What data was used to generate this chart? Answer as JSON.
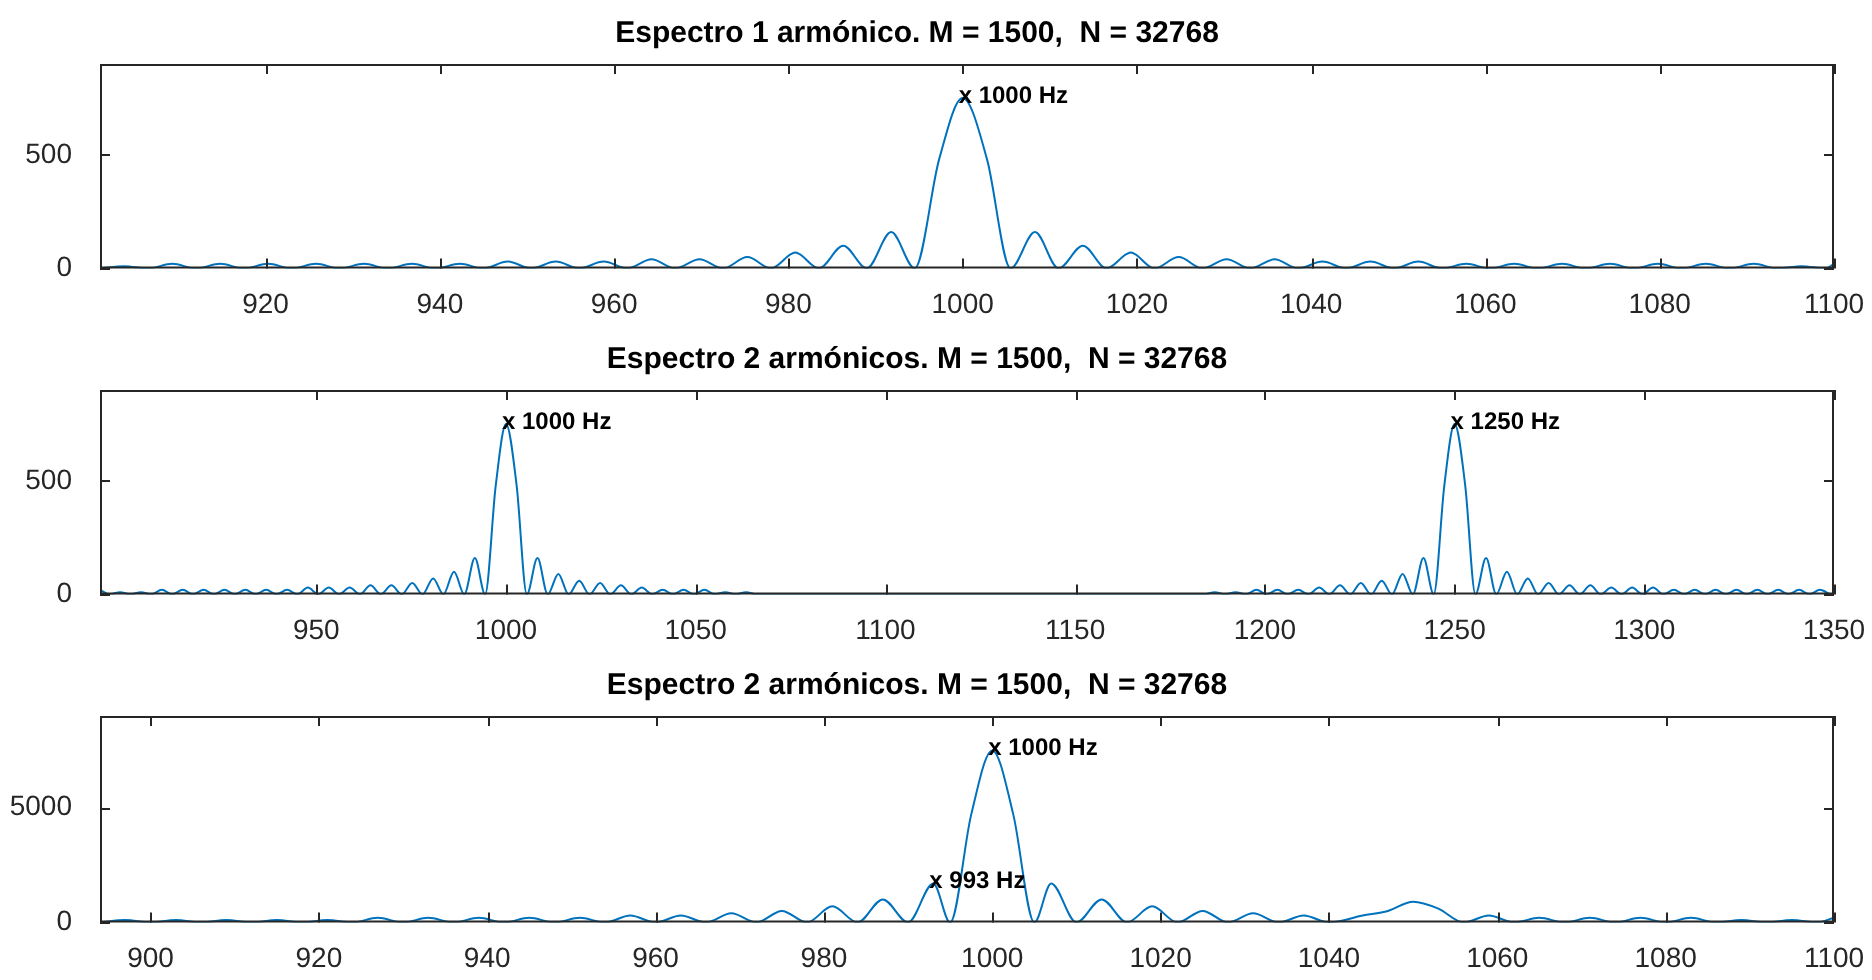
{
  "chart_data": [
    {
      "type": "line",
      "title": "Espectro 1 armónico. M = 1500,  N = 32768",
      "color": "#0072bd",
      "xlim": [
        901,
        1100
      ],
      "ylim": [
        0,
        900
      ],
      "xticks": [
        920,
        940,
        960,
        980,
        1000,
        1020,
        1040,
        1060,
        1080,
        1100
      ],
      "yticks": [
        0,
        500
      ],
      "x": [
        901,
        903.8,
        906.5,
        909.3,
        912,
        914.8,
        917.5,
        920.3,
        923,
        925.8,
        928.5,
        931.3,
        934,
        936.8,
        939.5,
        942.3,
        945,
        947.8,
        950.5,
        953.3,
        956,
        958.8,
        961.5,
        964.3,
        967,
        969.8,
        972.5,
        975.3,
        978,
        980.8,
        983.5,
        986.3,
        989,
        991.8,
        994.5,
        997.3,
        1000,
        1002.8,
        1005.5,
        1008.3,
        1011,
        1013.8,
        1016.5,
        1019.3,
        1022,
        1024.8,
        1027.5,
        1030.3,
        1033,
        1035.8,
        1038.5,
        1041.3,
        1044,
        1046.8,
        1049.5,
        1052.3,
        1055,
        1057.8,
        1060.5,
        1063.3,
        1066,
        1068.8,
        1071.5,
        1074.3,
        1077,
        1079.8,
        1082.5,
        1085.3,
        1088,
        1090.8,
        1093.5,
        1096.3,
        1099,
        1100
      ],
      "values": [
        0,
        10,
        0,
        20,
        0,
        20,
        0,
        20,
        0,
        20,
        0,
        20,
        0,
        20,
        0,
        20,
        0,
        30,
        0,
        30,
        0,
        30,
        0,
        40,
        0,
        40,
        0,
        50,
        0,
        70,
        0,
        100,
        0,
        160,
        0,
        480,
        750,
        480,
        0,
        160,
        0,
        100,
        0,
        70,
        0,
        50,
        0,
        40,
        0,
        40,
        0,
        30,
        0,
        30,
        0,
        30,
        0,
        20,
        0,
        20,
        0,
        20,
        0,
        20,
        0,
        20,
        0,
        20,
        0,
        20,
        0,
        10,
        0,
        20
      ],
      "annotations": [
        {
          "text": "x 1000 Hz",
          "x": 1000,
          "y": 750
        }
      ]
    },
    {
      "type": "line",
      "title": "Espectro 2 armónicos. M = 1500,  N = 32768",
      "color": "#0072bd",
      "xlim": [
        893,
        1350
      ],
      "ylim": [
        0,
        900
      ],
      "xticks": [
        950,
        1000,
        1050,
        1100,
        1150,
        1200,
        1250,
        1300,
        1350
      ],
      "yticks": [
        0,
        500
      ],
      "x": [
        893,
        895.5,
        898.3,
        901,
        903.8,
        906.5,
        909.3,
        912,
        914.8,
        917.5,
        920.3,
        923,
        925.8,
        928.5,
        931.3,
        934,
        936.8,
        939.5,
        942.3,
        945,
        947.8,
        950.5,
        953.3,
        956,
        958.8,
        961.5,
        964.3,
        967,
        969.8,
        972.5,
        975.3,
        978,
        980.8,
        983.5,
        986.3,
        989,
        991.8,
        994.5,
        997.3,
        1000,
        1002.8,
        1005.5,
        1008.3,
        1011,
        1013.8,
        1016.5,
        1019.3,
        1022,
        1024.8,
        1027.5,
        1030.3,
        1033,
        1035.8,
        1038.5,
        1041.3,
        1044,
        1046.8,
        1049.5,
        1052.3,
        1055,
        1057.8,
        1060.5,
        1063.3,
        1066,
        1184,
        1186.8,
        1189.5,
        1192.3,
        1195,
        1197.8,
        1200.5,
        1203.3,
        1206,
        1208.8,
        1211.5,
        1214.3,
        1217,
        1219.8,
        1222.5,
        1225.3,
        1228,
        1230.8,
        1233.5,
        1236.3,
        1239,
        1241.8,
        1244.5,
        1247.3,
        1250,
        1252.8,
        1255.5,
        1258.3,
        1261,
        1263.8,
        1266.5,
        1269.3,
        1272,
        1274.8,
        1277.5,
        1280.3,
        1283,
        1285.8,
        1288.5,
        1291.3,
        1294,
        1296.8,
        1299.5,
        1302.3,
        1305,
        1307.8,
        1310.5,
        1313.3,
        1316,
        1318.8,
        1321.5,
        1324.3,
        1327,
        1329.8,
        1332.5,
        1335.3,
        1338,
        1340.8,
        1343.5,
        1346.3,
        1349
      ],
      "values": [
        20,
        0,
        10,
        0,
        10,
        0,
        20,
        0,
        20,
        0,
        20,
        0,
        20,
        0,
        20,
        0,
        20,
        0,
        20,
        0,
        30,
        0,
        30,
        0,
        30,
        0,
        40,
        0,
        40,
        0,
        50,
        0,
        70,
        0,
        100,
        0,
        160,
        0,
        480,
        750,
        480,
        0,
        160,
        0,
        90,
        0,
        60,
        0,
        50,
        0,
        40,
        0,
        30,
        0,
        20,
        0,
        20,
        0,
        20,
        0,
        10,
        0,
        10,
        0,
        0,
        10,
        0,
        10,
        0,
        20,
        0,
        20,
        0,
        20,
        0,
        30,
        0,
        40,
        0,
        50,
        0,
        60,
        0,
        90,
        0,
        160,
        0,
        480,
        750,
        480,
        0,
        160,
        0,
        100,
        0,
        70,
        0,
        50,
        0,
        40,
        0,
        40,
        0,
        30,
        0,
        30,
        0,
        30,
        0,
        20,
        0,
        20,
        0,
        20,
        0,
        20,
        0,
        20,
        0,
        20,
        0,
        20,
        0,
        20,
        0
      ],
      "annotations": [
        {
          "text": "x 1000 Hz",
          "x": 1000,
          "y": 750
        },
        {
          "text": "x 1250 Hz",
          "x": 1250,
          "y": 750
        }
      ]
    },
    {
      "type": "line",
      "title": "Espectro 2 armónicos. M = 1500,  N = 32768",
      "color": "#0072bd",
      "xlim": [
        894,
        1100
      ],
      "ylim": [
        0,
        9000
      ],
      "xticks": [
        900,
        920,
        940,
        960,
        980,
        1000,
        1020,
        1040,
        1060,
        1080,
        1100
      ],
      "yticks": [
        0,
        5000
      ],
      "x": [
        894,
        897,
        900,
        903,
        906,
        909,
        912,
        915,
        918,
        921,
        924,
        927,
        930,
        933,
        936,
        939,
        942,
        945,
        948,
        951,
        954,
        957,
        960,
        963,
        966,
        969,
        972,
        975,
        978,
        981,
        984,
        987,
        990,
        993,
        995,
        997.5,
        1000,
        1002.5,
        1005,
        1007,
        1010,
        1013,
        1016,
        1019,
        1022,
        1025,
        1028,
        1031,
        1034,
        1037,
        1040,
        1044,
        1047,
        1050,
        1053,
        1056,
        1059,
        1062,
        1065,
        1068,
        1071,
        1074,
        1077,
        1080,
        1083,
        1086,
        1089,
        1092,
        1095,
        1098,
        1100
      ],
      "values": [
        0,
        100,
        0,
        100,
        0,
        100,
        0,
        100,
        0,
        100,
        0,
        200,
        0,
        200,
        0,
        200,
        0,
        200,
        0,
        200,
        0,
        300,
        0,
        300,
        0,
        400,
        0,
        500,
        0,
        700,
        0,
        1000,
        0,
        1700,
        0,
        4700,
        7500,
        4700,
        0,
        1700,
        0,
        1000,
        0,
        700,
        0,
        500,
        0,
        400,
        0,
        300,
        0,
        300,
        500,
        900,
        600,
        0,
        300,
        0,
        200,
        0,
        200,
        0,
        200,
        0,
        200,
        0,
        100,
        0,
        100,
        0,
        200
      ],
      "annotations": [
        {
          "text": "x 1000 Hz",
          "x": 1000,
          "y": 7500
        },
        {
          "text": "x 993 Hz",
          "x": 993,
          "y": 1700
        }
      ]
    }
  ]
}
